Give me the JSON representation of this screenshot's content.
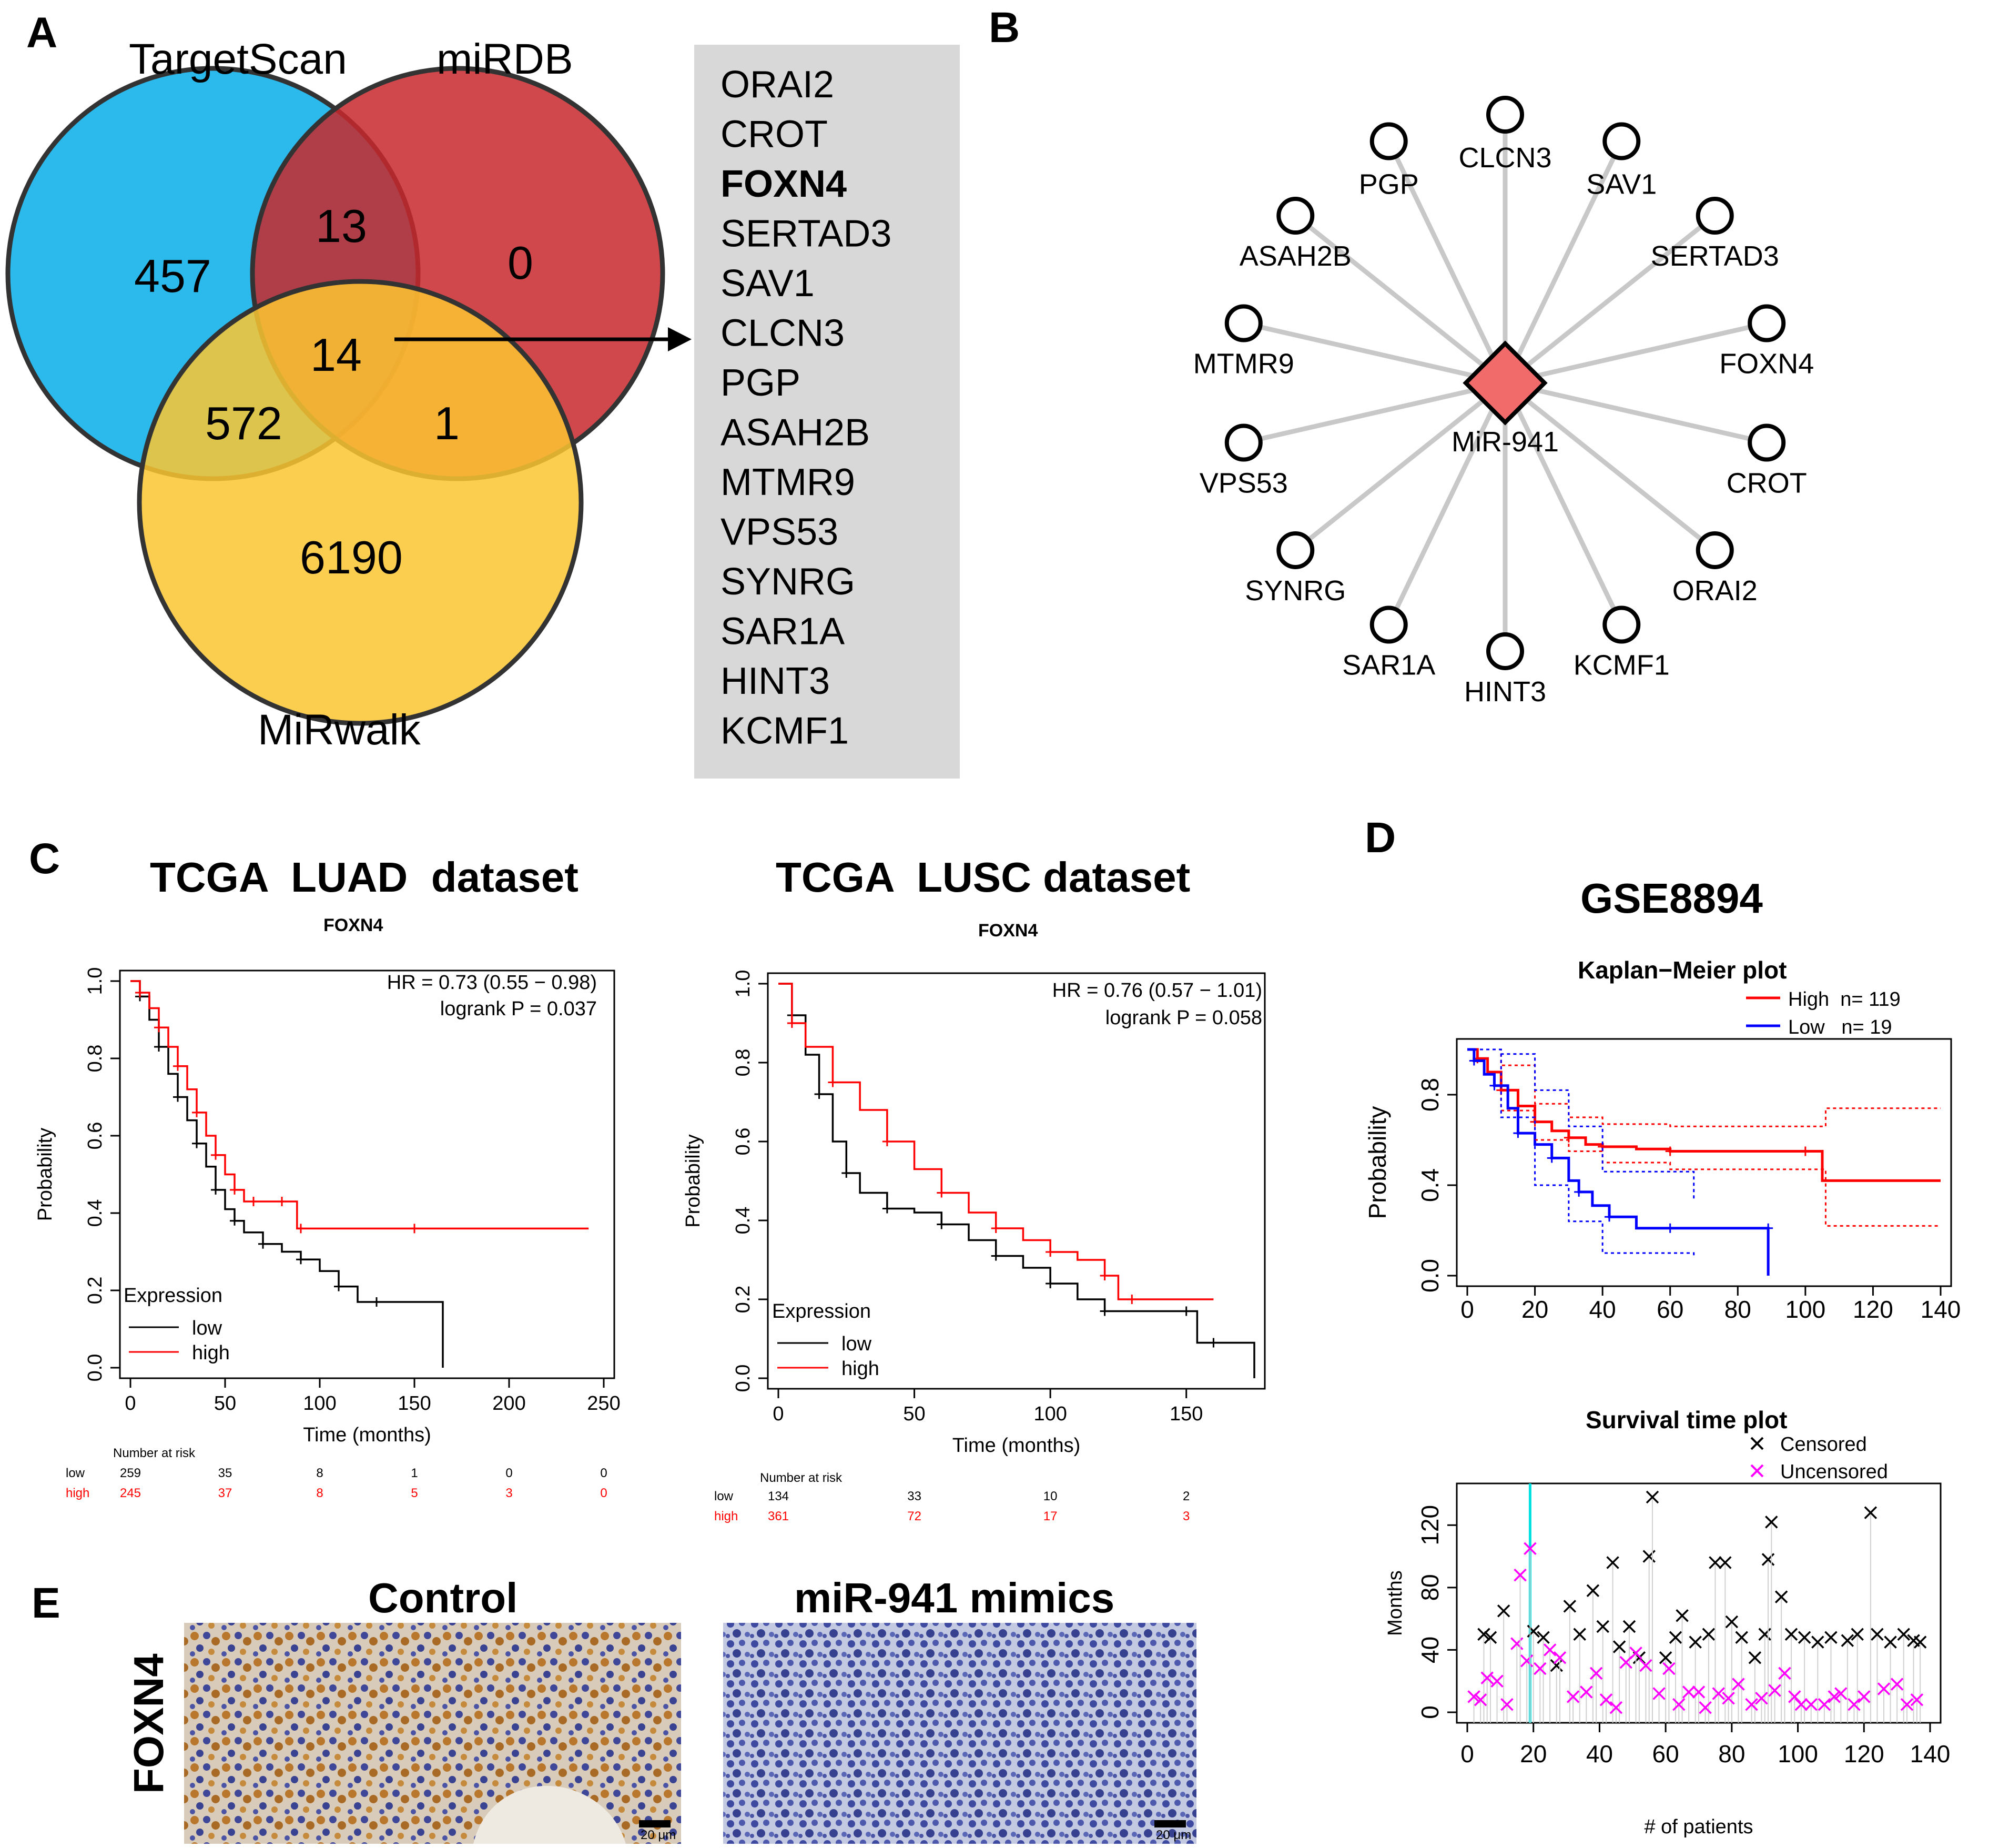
{
  "panels": {
    "A": "A",
    "B": "B",
    "C": "C",
    "D": "D",
    "E": "E"
  },
  "venn": {
    "labels": {
      "targetscan": "TargetScan",
      "mirdb": "miRDB",
      "mirwalk": "MiRwalk"
    },
    "counts": {
      "ts_only": "457",
      "ts_mirdb": "13",
      "mirdb_only": "0",
      "all": "14",
      "ts_mirwalk": "572",
      "mirdb_mirwalk": "1",
      "mirwalk_only": "6190"
    },
    "colors": {
      "targetscan": "#2cb9ec",
      "mirdb": "#c8282c",
      "mirwalk": "#fbc531"
    },
    "gene_list": [
      "ORAI2",
      "CROT",
      "FOXN4",
      "SERTAD3",
      "SAV1",
      "CLCN3",
      "PGP",
      "ASAH2B",
      "MTMR9",
      "VPS53",
      "SYNRG",
      "SAR1A",
      "HINT3",
      "KCMF1"
    ],
    "highlight_gene": "FOXN4"
  },
  "network": {
    "center": "MiR-941",
    "center_color": "#f26b6b",
    "targets": [
      "CLCN3",
      "SAV1",
      "SERTAD3",
      "FOXN4",
      "CROT",
      "ORAI2",
      "KCMF1",
      "HINT3",
      "SAR1A",
      "SYNRG",
      "VPS53",
      "MTMR9",
      "ASAH2B",
      "PGP"
    ]
  },
  "chart_data": [
    {
      "id": "luad",
      "type": "line",
      "title": "TCGA  LUAD  dataset",
      "subtitle": "FOXN4",
      "xlabel": "Time (months)",
      "ylabel": "Probability",
      "xlim": [
        0,
        250
      ],
      "ylim": [
        0,
        1
      ],
      "xticks": [
        "0",
        "50",
        "100",
        "150",
        "200",
        "250"
      ],
      "yticks": [
        "0.0",
        "0.2",
        "0.4",
        "0.6",
        "0.8",
        "1.0"
      ],
      "annotations": [
        "HR = 0.73 (0.55 − 0.98)",
        "logrank P = 0.037"
      ],
      "legend": {
        "title": "Expression",
        "items": [
          "low",
          "high"
        ]
      },
      "series": [
        {
          "name": "low",
          "color": "#000000",
          "x": [
            0,
            5,
            10,
            15,
            20,
            25,
            30,
            35,
            40,
            45,
            50,
            55,
            60,
            70,
            80,
            90,
            100,
            110,
            120,
            130,
            164,
            165
          ],
          "y": [
            1.0,
            0.96,
            0.9,
            0.83,
            0.76,
            0.7,
            0.64,
            0.58,
            0.52,
            0.46,
            0.41,
            0.38,
            0.35,
            0.32,
            0.3,
            0.28,
            0.25,
            0.21,
            0.17,
            0.17,
            0.17,
            0.0
          ]
        },
        {
          "name": "high",
          "color": "#ff0000",
          "x": [
            0,
            5,
            10,
            15,
            20,
            25,
            30,
            35,
            40,
            45,
            50,
            55,
            60,
            65,
            70,
            80,
            88,
            90,
            100,
            150,
            200,
            242
          ],
          "y": [
            1.0,
            0.97,
            0.93,
            0.88,
            0.83,
            0.78,
            0.72,
            0.66,
            0.6,
            0.55,
            0.5,
            0.46,
            0.43,
            0.43,
            0.43,
            0.43,
            0.36,
            0.36,
            0.36,
            0.36,
            0.36,
            0.36
          ]
        }
      ],
      "risk": {
        "header": "Number at risk",
        "rows": [
          {
            "name": "low",
            "values": [
              "259",
              "35",
              "8",
              "1",
              "0",
              "0"
            ]
          },
          {
            "name": "high",
            "values": [
              "245",
              "37",
              "8",
              "5",
              "3",
              "0"
            ]
          }
        ]
      }
    },
    {
      "id": "lusc",
      "type": "line",
      "title": "TCGA  LUSC dataset",
      "subtitle": "FOXN4",
      "xlabel": "Time (months)",
      "ylabel": "Probability",
      "xlim": [
        0,
        175
      ],
      "ylim": [
        0,
        1
      ],
      "xticks": [
        "0",
        "50",
        "100",
        "150"
      ],
      "yticks": [
        "0.0",
        "0.2",
        "0.4",
        "0.6",
        "0.8",
        "1.0"
      ],
      "annotations": [
        "HR = 0.76 (0.57 − 1.01)",
        "logrank P = 0.058"
      ],
      "legend": {
        "title": "Expression",
        "items": [
          "low",
          "high"
        ]
      },
      "series": [
        {
          "name": "low",
          "color": "#000000",
          "x": [
            0,
            5,
            10,
            15,
            20,
            25,
            30,
            40,
            50,
            60,
            70,
            80,
            90,
            100,
            110,
            120,
            130,
            150,
            154,
            160,
            175
          ],
          "y": [
            1.0,
            0.92,
            0.82,
            0.72,
            0.6,
            0.52,
            0.47,
            0.43,
            0.42,
            0.39,
            0.35,
            0.31,
            0.28,
            0.24,
            0.2,
            0.17,
            0.17,
            0.17,
            0.09,
            0.09,
            0.0
          ]
        },
        {
          "name": "high",
          "color": "#ff0000",
          "x": [
            0,
            5,
            10,
            20,
            30,
            40,
            50,
            60,
            70,
            80,
            90,
            100,
            110,
            120,
            125,
            130,
            160
          ],
          "y": [
            1.0,
            0.9,
            0.84,
            0.75,
            0.68,
            0.6,
            0.53,
            0.47,
            0.42,
            0.38,
            0.35,
            0.32,
            0.3,
            0.26,
            0.2,
            0.2,
            0.2
          ]
        }
      ],
      "risk": {
        "header": "Number at risk",
        "rows": [
          {
            "name": "low",
            "values": [
              "134",
              "33",
              "10",
              "2"
            ]
          },
          {
            "name": "high",
            "values": [
              "361",
              "72",
              "17",
              "3"
            ]
          }
        ]
      }
    },
    {
      "id": "gse",
      "type": "line",
      "title": "GSE8894",
      "subtitle": "Kaplan−Meier plot",
      "xlabel": "",
      "ylabel": "Probability",
      "xlim": [
        0,
        140
      ],
      "ylim": [
        0,
        1
      ],
      "xticks": [
        "0",
        "20",
        "40",
        "60",
        "80",
        "100",
        "120",
        "140"
      ],
      "yticks": [
        "0.0",
        "0.4",
        "0.8"
      ],
      "legend": {
        "items": [
          "High  n= 119",
          "Low   n= 19"
        ]
      },
      "series": [
        {
          "name": "High",
          "color": "#ff0000",
          "x": [
            0,
            3,
            6,
            10,
            15,
            20,
            25,
            30,
            35,
            40,
            50,
            60,
            80,
            100,
            105,
            140
          ],
          "y": [
            1.0,
            0.96,
            0.9,
            0.82,
            0.75,
            0.68,
            0.64,
            0.61,
            0.58,
            0.57,
            0.56,
            0.55,
            0.55,
            0.55,
            0.42,
            0.42
          ]
        },
        {
          "name": "Low",
          "color": "#0000ff",
          "x": [
            0,
            2,
            5,
            8,
            12,
            15,
            20,
            25,
            30,
            33,
            37,
            42,
            50,
            60,
            67,
            89,
            89
          ],
          "y": [
            1.0,
            0.95,
            0.89,
            0.84,
            0.74,
            0.63,
            0.58,
            0.52,
            0.42,
            0.37,
            0.31,
            0.26,
            0.21,
            0.21,
            0.21,
            0.21,
            0.0
          ]
        }
      ]
    },
    {
      "id": "survival",
      "type": "scatter",
      "title": "Survival time plot",
      "xlabel": "# of patients",
      "ylabel": "Months",
      "xlim": [
        0,
        140
      ],
      "ylim": [
        0,
        140
      ],
      "xticks": [
        "0",
        "20",
        "40",
        "60",
        "80",
        "100",
        "120",
        "140"
      ],
      "yticks": [
        "0",
        "40",
        "80",
        "120"
      ],
      "legend": {
        "items": [
          "Censored",
          "Uncensored"
        ]
      },
      "cutoff_x": 19,
      "censored": [
        [
          5,
          50
        ],
        [
          7,
          48
        ],
        [
          11,
          65
        ],
        [
          20,
          52
        ],
        [
          23,
          48
        ],
        [
          27,
          30
        ],
        [
          31,
          68
        ],
        [
          34,
          50
        ],
        [
          38,
          78
        ],
        [
          41,
          55
        ],
        [
          44,
          96
        ],
        [
          46,
          42
        ],
        [
          49,
          55
        ],
        [
          52,
          35
        ],
        [
          55,
          100
        ],
        [
          56,
          138
        ],
        [
          60,
          35
        ],
        [
          63,
          48
        ],
        [
          65,
          62
        ],
        [
          69,
          45
        ],
        [
          73,
          50
        ],
        [
          75,
          96
        ],
        [
          78,
          96
        ],
        [
          80,
          58
        ],
        [
          83,
          48
        ],
        [
          87,
          35
        ],
        [
          90,
          50
        ],
        [
          91,
          98
        ],
        [
          92,
          122
        ],
        [
          95,
          74
        ],
        [
          98,
          50
        ],
        [
          102,
          48
        ],
        [
          106,
          45
        ],
        [
          110,
          48
        ],
        [
          115,
          46
        ],
        [
          118,
          50
        ],
        [
          122,
          128
        ],
        [
          124,
          50
        ],
        [
          128,
          45
        ],
        [
          132,
          50
        ],
        [
          135,
          46
        ],
        [
          137,
          45
        ]
      ],
      "uncensored": [
        [
          2,
          10
        ],
        [
          4,
          8
        ],
        [
          6,
          22
        ],
        [
          9,
          20
        ],
        [
          12,
          5
        ],
        [
          15,
          44
        ],
        [
          16,
          88
        ],
        [
          18,
          33
        ],
        [
          19,
          105
        ],
        [
          22,
          28
        ],
        [
          25,
          40
        ],
        [
          28,
          35
        ],
        [
          32,
          10
        ],
        [
          36,
          13
        ],
        [
          39,
          25
        ],
        [
          42,
          8
        ],
        [
          45,
          3
        ],
        [
          48,
          32
        ],
        [
          51,
          38
        ],
        [
          54,
          30
        ],
        [
          58,
          12
        ],
        [
          61,
          28
        ],
        [
          64,
          5
        ],
        [
          67,
          13
        ],
        [
          70,
          13
        ],
        [
          72,
          3
        ],
        [
          76,
          12
        ],
        [
          79,
          9
        ],
        [
          82,
          18
        ],
        [
          86,
          5
        ],
        [
          89,
          9
        ],
        [
          93,
          14
        ],
        [
          96,
          25
        ],
        [
          99,
          10
        ],
        [
          101,
          5
        ],
        [
          104,
          5
        ],
        [
          108,
          5
        ],
        [
          111,
          10
        ],
        [
          113,
          12
        ],
        [
          117,
          5
        ],
        [
          120,
          10
        ],
        [
          126,
          15
        ],
        [
          130,
          18
        ],
        [
          133,
          5
        ],
        [
          136,
          8
        ]
      ]
    }
  ],
  "ihc": {
    "row_label": "FOXN4",
    "control": "Control",
    "treatment": "miR-941 mimics",
    "scale": "20 μm"
  }
}
